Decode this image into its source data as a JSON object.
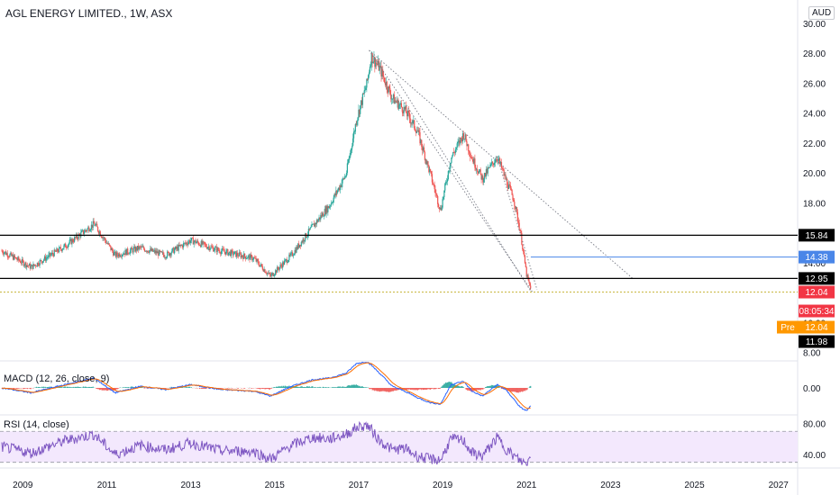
{
  "header": {
    "title": "AGL ENERGY LIMITED., 1W, ASX",
    "currency": "AUD"
  },
  "colors": {
    "up": "#26a69a",
    "down": "#ef5350",
    "accent": "#2962ff",
    "macd_line": "#2962ff",
    "signal_line": "#ff6d00",
    "rsi_line": "#7e57c2",
    "rsi_band": "#f3e8fd",
    "level_line": "#000000",
    "current": "#f23645",
    "pre": "#ff9800",
    "blue_level": "#4a86e8"
  },
  "chart_data": [
    {
      "type": "candlestick",
      "x_range": [
        2008.5,
        2027.5
      ],
      "ylim": [
        7.5,
        30.6
      ],
      "y_ticks": [
        8,
        10,
        12,
        14,
        16,
        18,
        20,
        22,
        24,
        26,
        28,
        30
      ],
      "y_tick_labels": [
        "8.00",
        "10.00",
        "12.00",
        "14.00",
        "16.00",
        "18.00",
        "20.00",
        "22.00",
        "24.00",
        "26.00",
        "28.00",
        "30.00"
      ],
      "x_ticks": [
        2009,
        2011,
        2013,
        2015,
        2017,
        2019,
        2021,
        2023,
        2025,
        2027
      ],
      "x_tick_labels": [
        "2009",
        "2011",
        "2013",
        "2015",
        "2017",
        "2019",
        "2021",
        "2023",
        "2025",
        "2027"
      ],
      "price_path": [
        [
          2008.5,
          14.8
        ],
        [
          2009.2,
          13.7
        ],
        [
          2010.0,
          15.1
        ],
        [
          2010.7,
          16.6
        ],
        [
          2011.2,
          14.5
        ],
        [
          2011.8,
          15.0
        ],
        [
          2012.4,
          14.5
        ],
        [
          2013.0,
          15.5
        ],
        [
          2013.7,
          14.8
        ],
        [
          2014.5,
          14.3
        ],
        [
          2014.9,
          13.1
        ],
        [
          2015.4,
          14.5
        ],
        [
          2015.9,
          16.4
        ],
        [
          2016.3,
          17.8
        ],
        [
          2016.7,
          19.9
        ],
        [
          2016.95,
          23.6
        ],
        [
          2017.2,
          26.0
        ],
        [
          2017.3,
          27.8
        ],
        [
          2017.5,
          27.0
        ],
        [
          2017.8,
          25.0
        ],
        [
          2018.1,
          24.2
        ],
        [
          2018.4,
          22.8
        ],
        [
          2018.7,
          20.0
        ],
        [
          2018.95,
          17.5
        ],
        [
          2019.2,
          21.0
        ],
        [
          2019.5,
          22.6
        ],
        [
          2019.7,
          21.0
        ],
        [
          2019.95,
          19.6
        ],
        [
          2020.3,
          21.1
        ],
        [
          2020.5,
          19.6
        ],
        [
          2020.7,
          18.2
        ],
        [
          2020.85,
          16.1
        ],
        [
          2021.0,
          13.2
        ],
        [
          2021.1,
          12.2
        ]
      ],
      "levels": [
        {
          "label": "15.84",
          "value": 15.84,
          "style": "black"
        },
        {
          "label": "14.38",
          "value": 14.38,
          "style": "blue"
        },
        {
          "label": "12.95",
          "value": 12.95,
          "style": "black"
        },
        {
          "label": "12.04",
          "value": 12.04,
          "style": "red"
        }
      ],
      "time_label": "08:05:34",
      "pre_label": "Pre",
      "pre_value": "12.04",
      "extra_price_label": "11.98",
      "trendlines": [
        {
          "from": [
            2017.25,
            28.2
          ],
          "to": [
            2023.55,
            12.9
          ]
        },
        {
          "from": [
            2017.25,
            28.2
          ],
          "to": [
            2021.15,
            12.0
          ]
        },
        {
          "from": [
            2017.9,
            26.3
          ],
          "to": [
            2021.1,
            12.1
          ]
        },
        {
          "from": [
            2020.3,
            21.1
          ],
          "to": [
            2021.25,
            12.2
          ]
        }
      ]
    },
    {
      "type": "histogram+line",
      "title": "MACD (12, 26, close, 9)",
      "ylim": [
        -1.6,
        1.6
      ],
      "y_ticks": [
        0
      ],
      "y_tick_labels": [
        "0.00"
      ],
      "macd_path": [
        [
          2008.5,
          0.0
        ],
        [
          2009.2,
          -0.3
        ],
        [
          2010.0,
          0.2
        ],
        [
          2010.7,
          0.6
        ],
        [
          2011.2,
          -0.3
        ],
        [
          2011.8,
          0.1
        ],
        [
          2012.4,
          -0.1
        ],
        [
          2013.0,
          0.2
        ],
        [
          2013.7,
          -0.1
        ],
        [
          2014.5,
          -0.2
        ],
        [
          2014.9,
          -0.5
        ],
        [
          2015.4,
          0.1
        ],
        [
          2015.9,
          0.5
        ],
        [
          2016.3,
          0.6
        ],
        [
          2016.7,
          0.9
        ],
        [
          2016.95,
          1.5
        ],
        [
          2017.2,
          1.6
        ],
        [
          2017.3,
          1.4
        ],
        [
          2017.5,
          0.9
        ],
        [
          2017.8,
          0.1
        ],
        [
          2018.1,
          -0.2
        ],
        [
          2018.4,
          -0.6
        ],
        [
          2018.7,
          -0.9
        ],
        [
          2018.95,
          -1.0
        ],
        [
          2019.2,
          0.2
        ],
        [
          2019.5,
          0.4
        ],
        [
          2019.7,
          -0.2
        ],
        [
          2019.95,
          -0.5
        ],
        [
          2020.3,
          0.2
        ],
        [
          2020.5,
          -0.1
        ],
        [
          2020.7,
          -0.7
        ],
        [
          2020.85,
          -1.2
        ],
        [
          2021.0,
          -1.4
        ],
        [
          2021.1,
          -1.1
        ]
      ]
    },
    {
      "type": "line",
      "title": "RSI (14, close)",
      "ylim": [
        25,
        90
      ],
      "band": [
        30,
        70
      ],
      "y_ticks": [
        40,
        80
      ],
      "y_tick_labels": [
        "40.00",
        "80.00"
      ],
      "rsi_path": [
        [
          2008.5,
          50
        ],
        [
          2009.2,
          42
        ],
        [
          2010.0,
          58
        ],
        [
          2010.7,
          66
        ],
        [
          2011.2,
          40
        ],
        [
          2011.8,
          52
        ],
        [
          2012.4,
          46
        ],
        [
          2013.0,
          55
        ],
        [
          2013.7,
          45
        ],
        [
          2014.5,
          44
        ],
        [
          2014.9,
          34
        ],
        [
          2015.4,
          52
        ],
        [
          2015.9,
          62
        ],
        [
          2016.3,
          60
        ],
        [
          2016.7,
          66
        ],
        [
          2016.95,
          75
        ],
        [
          2017.2,
          78
        ],
        [
          2017.3,
          72
        ],
        [
          2017.5,
          58
        ],
        [
          2017.8,
          46
        ],
        [
          2018.1,
          48
        ],
        [
          2018.4,
          38
        ],
        [
          2018.7,
          34
        ],
        [
          2018.95,
          33
        ],
        [
          2019.2,
          60
        ],
        [
          2019.5,
          58
        ],
        [
          2019.7,
          42
        ],
        [
          2019.95,
          38
        ],
        [
          2020.3,
          62
        ],
        [
          2020.5,
          48
        ],
        [
          2020.7,
          38
        ],
        [
          2020.85,
          32
        ],
        [
          2021.0,
          28
        ],
        [
          2021.1,
          38
        ]
      ]
    }
  ]
}
